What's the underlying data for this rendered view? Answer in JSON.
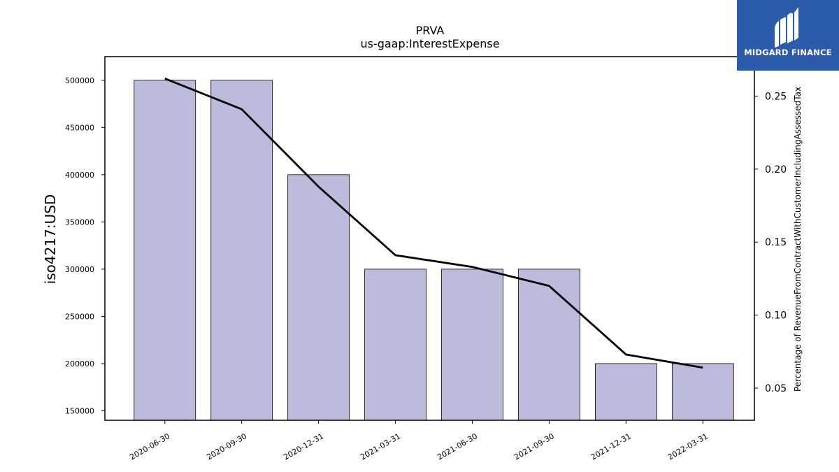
{
  "chart_data": {
    "type": "bar",
    "title": "PRVA",
    "subtitle": "us-gaap:InterestExpense",
    "categories": [
      "2020-06-30",
      "2020-09-30",
      "2020-12-31",
      "2021-03-31",
      "2021-06-30",
      "2021-09-30",
      "2021-12-31",
      "2022-03-31"
    ],
    "series": [
      {
        "name": "",
        "type": "bar",
        "axis": "left",
        "values": [
          500000,
          500000,
          400000,
          300000,
          300000,
          300000,
          200000,
          200000
        ]
      },
      {
        "name": "",
        "type": "line",
        "axis": "right",
        "values": [
          0.262,
          0.241,
          0.188,
          0.141,
          0.133,
          0.12,
          0.073,
          0.064
        ]
      }
    ],
    "ylabel": "iso4217:USD",
    "y2label": "Percentage of RevenueFromContractWithCustomerIncludingAssessedTax",
    "ylim": [
      140000,
      525000
    ],
    "y2lim": [
      0.028,
      0.277
    ],
    "yticks": [
      150000,
      200000,
      250000,
      300000,
      350000,
      400000,
      450000,
      500000
    ],
    "y2ticks": [
      0.05,
      0.1,
      0.15,
      0.2,
      0.25
    ],
    "grid": false,
    "legend": "none",
    "colors": {
      "bar_fill": "#bdbbdb",
      "bar_edge": "#000000",
      "line": "#000000"
    }
  },
  "logo": {
    "text": "MIDGARD FINANCE",
    "background": "#2d5bab",
    "icon": "midgard-logo-icon"
  }
}
